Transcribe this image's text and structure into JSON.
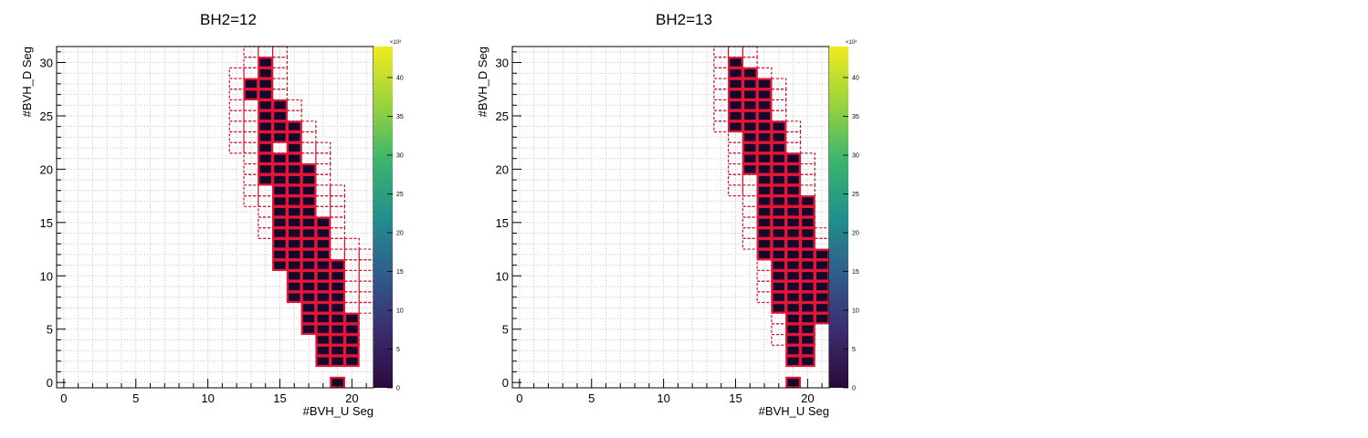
{
  "chart_data": [
    {
      "type": "heatmap",
      "title": "BH2=12",
      "xlabel": "#BVH_U Seg",
      "ylabel": "#BVH_D Seg",
      "xlim": [
        -0.5,
        21.5
      ],
      "ylim": [
        -0.5,
        31.5
      ],
      "x_ticks": [
        0,
        5,
        10,
        15,
        20
      ],
      "y_ticks": [
        0,
        5,
        10,
        15,
        20,
        25,
        30
      ],
      "z_range": [
        0,
        44
      ],
      "z_multiplier_label": "×10³",
      "z_ticks": [
        0,
        5,
        10,
        15,
        20,
        25,
        30,
        35,
        40
      ],
      "colormap": [
        "#2a0a3a",
        "#3b2c6e",
        "#2f5d8c",
        "#21908c",
        "#3bb56c",
        "#9bd43b",
        "#f0ea20"
      ],
      "grid": true,
      "filled_cells_xranges": [
        [
          19,
          19
        ],
        [],
        [
          18,
          20
        ],
        [
          18,
          20
        ],
        [
          18,
          20
        ],
        [
          17,
          20
        ],
        [
          17,
          20
        ],
        [
          17,
          19
        ],
        [
          16,
          19
        ],
        [
          16,
          19
        ],
        [
          16,
          19
        ],
        [
          15,
          19
        ],
        [
          15,
          18
        ],
        [
          15,
          18
        ],
        [
          15,
          18
        ],
        [
          15,
          18
        ],
        [
          15,
          17
        ],
        [
          15,
          17
        ],
        [
          15,
          17
        ],
        [
          14,
          17
        ],
        [
          14,
          17
        ],
        [
          14,
          16
        ],
        [
          14,
          16
        ],
        [
          14,
          16
        ],
        [
          14,
          16
        ],
        [
          14,
          15
        ],
        [
          14,
          15
        ],
        [
          13,
          14
        ],
        [
          13,
          14
        ],
        [
          14,
          14
        ],
        [
          14,
          14
        ],
        []
      ],
      "filled_cells_holes": [
        [
          15,
          22
        ],
        [
          17,
          21
        ]
      ],
      "outlined_cells_xranges": [
        [],
        [],
        [],
        [],
        [
          18,
          20
        ],
        [
          18,
          20
        ],
        [
          17,
          20
        ],
        [
          17,
          21
        ],
        [
          16,
          21
        ],
        [
          16,
          21
        ],
        [
          16,
          21
        ],
        [
          15,
          21
        ],
        [
          15,
          21
        ],
        [
          15,
          20
        ],
        [
          14,
          19
        ],
        [
          14,
          19
        ],
        [
          14,
          19
        ],
        [
          13,
          19
        ],
        [
          13,
          19
        ],
        [
          13,
          18
        ],
        [
          13,
          18
        ],
        [
          13,
          18
        ],
        [
          12,
          18
        ],
        [
          12,
          17
        ],
        [
          12,
          17
        ],
        [
          12,
          16
        ],
        [
          12,
          16
        ],
        [
          12,
          15
        ],
        [
          12,
          15
        ],
        [
          12,
          15
        ],
        [
          13,
          15
        ],
        [
          13,
          15
        ]
      ]
    },
    {
      "type": "heatmap",
      "title": "BH2=13",
      "xlabel": "#BVH_U Seg",
      "ylabel": "#BVH_D Seg",
      "xlim": [
        -0.5,
        21.5
      ],
      "ylim": [
        -0.5,
        31.5
      ],
      "x_ticks": [
        0,
        5,
        10,
        15,
        20
      ],
      "y_ticks": [
        0,
        5,
        10,
        15,
        20,
        25,
        30
      ],
      "z_range": [
        0,
        44
      ],
      "z_multiplier_label": "×10³",
      "z_ticks": [
        0,
        5,
        10,
        15,
        20,
        25,
        30,
        35,
        40
      ],
      "colormap": [
        "#2a0a3a",
        "#3b2c6e",
        "#2f5d8c",
        "#21908c",
        "#3bb56c",
        "#9bd43b",
        "#f0ea20"
      ],
      "grid": true,
      "filled_cells_xranges": [
        [
          19,
          19
        ],
        [],
        [
          19,
          20
        ],
        [
          19,
          20
        ],
        [
          19,
          20
        ],
        [
          19,
          20
        ],
        [
          19,
          21
        ],
        [
          18,
          21
        ],
        [
          18,
          21
        ],
        [
          18,
          21
        ],
        [
          18,
          21
        ],
        [
          18,
          21
        ],
        [
          17,
          21
        ],
        [
          17,
          20
        ],
        [
          17,
          20
        ],
        [
          17,
          20
        ],
        [
          17,
          20
        ],
        [
          17,
          20
        ],
        [
          17,
          19
        ],
        [
          17,
          19
        ],
        [
          16,
          19
        ],
        [
          16,
          19
        ],
        [
          16,
          18
        ],
        [
          16,
          18
        ],
        [
          15,
          18
        ],
        [
          15,
          17
        ],
        [
          15,
          17
        ],
        [
          15,
          17
        ],
        [
          15,
          17
        ],
        [
          15,
          16
        ],
        [
          15,
          15
        ],
        []
      ],
      "filled_cells_holes": [],
      "outlined_cells_xranges": [
        [],
        [],
        [],
        [],
        [
          18,
          20
        ],
        [
          18,
          20
        ],
        [
          18,
          21
        ],
        [
          18,
          21
        ],
        [
          17,
          21
        ],
        [
          17,
          21
        ],
        [
          17,
          21
        ],
        [
          17,
          21
        ],
        [
          17,
          21
        ],
        [
          16,
          21
        ],
        [
          16,
          21
        ],
        [
          16,
          20
        ],
        [
          16,
          20
        ],
        [
          16,
          20
        ],
        [
          15,
          20
        ],
        [
          15,
          20
        ],
        [
          15,
          20
        ],
        [
          15,
          20
        ],
        [
          15,
          19
        ],
        [
          15,
          19
        ],
        [
          14,
          19
        ],
        [
          14,
          18
        ],
        [
          14,
          18
        ],
        [
          14,
          18
        ],
        [
          14,
          18
        ],
        [
          14,
          17
        ],
        [
          14,
          16
        ],
        [
          14,
          16
        ]
      ]
    }
  ]
}
